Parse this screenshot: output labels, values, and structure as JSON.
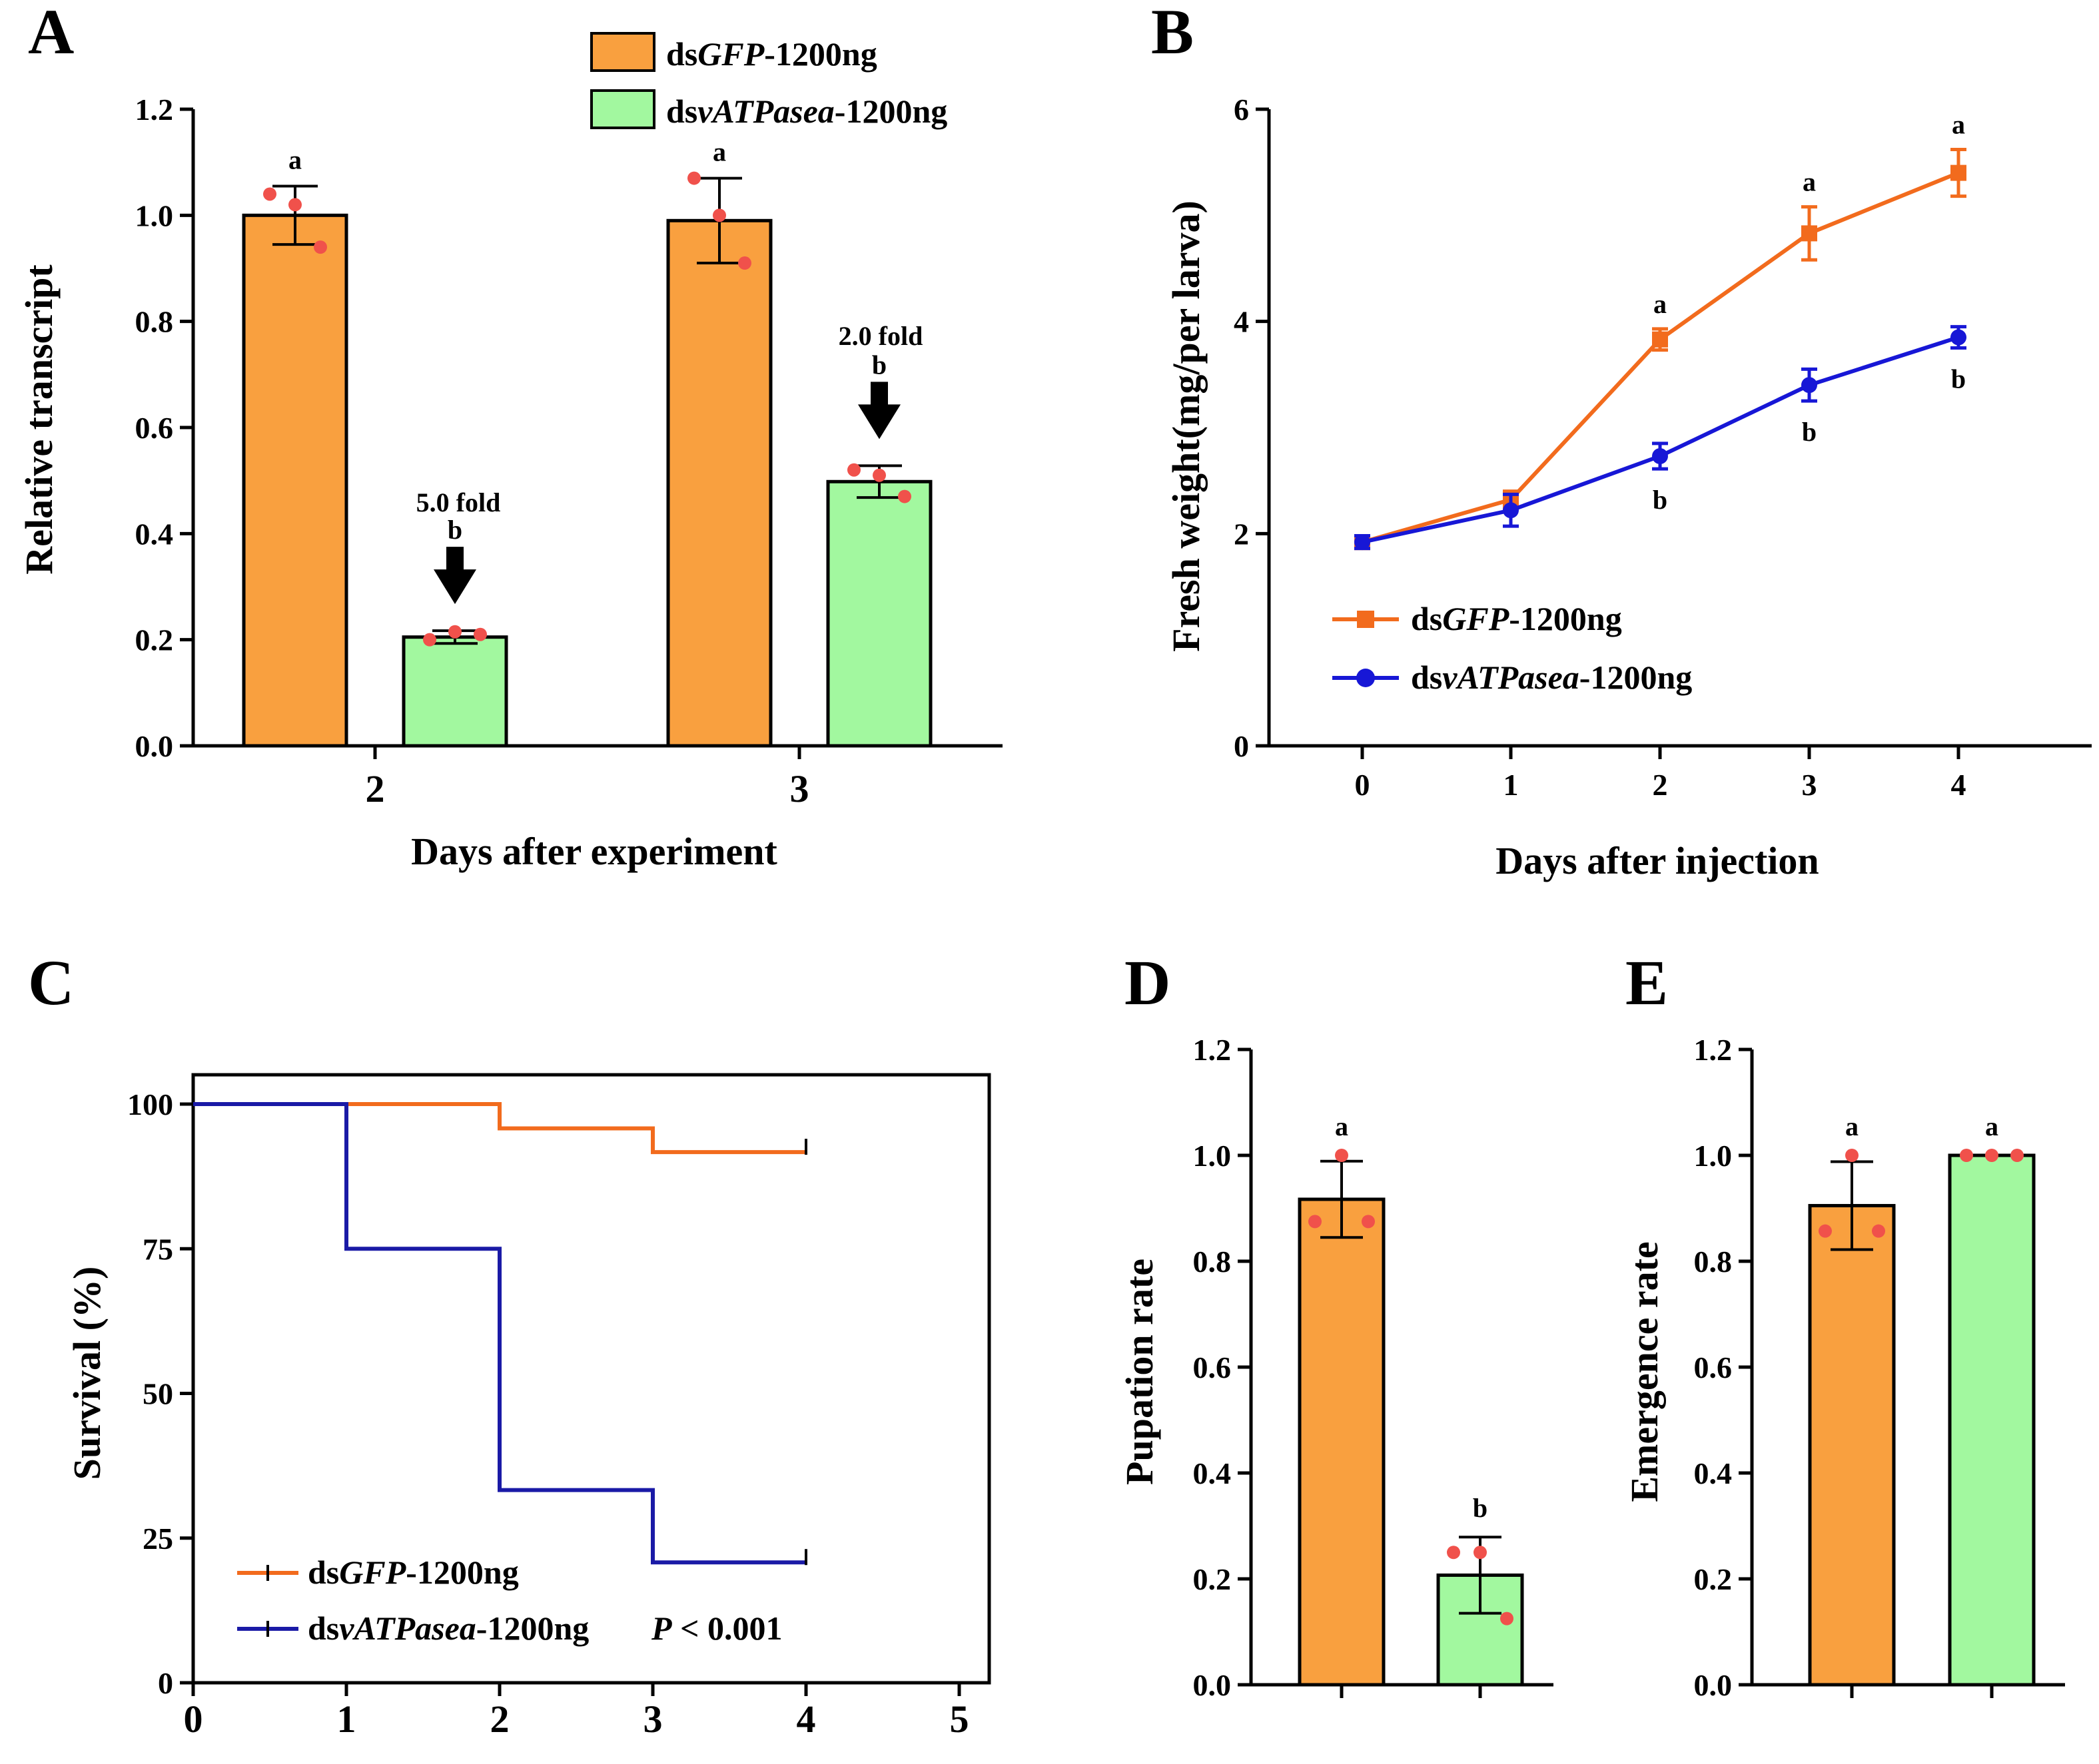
{
  "colors": {
    "gfp": "#f9a03f",
    "vatp": "#a2f89f",
    "dot": "#f0514b",
    "line_gfp": "#f26b1d",
    "line_vatp": "#1717d6",
    "km_gfp": "#f26b1d",
    "km_vatp": "#1a1aa6"
  },
  "panels": {
    "A": "A",
    "B": "B",
    "C": "C",
    "D": "D",
    "E": "E"
  },
  "legend": {
    "gfp_prefix": "ds",
    "gfp_gene": "GFP",
    "gfp_suffix": "-1200ng",
    "vatp_prefix": "ds",
    "vatp_gene": "vATPasea",
    "vatp_suffix": "-1200ng",
    "p_label": "P",
    "p_value": " < 0.001"
  },
  "chart_data": [
    {
      "id": "A",
      "type": "bar",
      "title": "",
      "xlabel": "Days after experiment",
      "ylabel": "Relative transcript",
      "categories": [
        "2",
        "3"
      ],
      "ylim": [
        0,
        1.2
      ],
      "yticks": [
        "0.0",
        "0.2",
        "0.4",
        "0.6",
        "0.8",
        "1.0",
        "1.2"
      ],
      "series": [
        {
          "name": "dsGFP-1200ng",
          "values": [
            1.0,
            0.99
          ],
          "errors": [
            0.055,
            0.08
          ],
          "letters": [
            "a",
            "a"
          ],
          "points": [
            [
              1.04,
              1.02,
              0.94
            ],
            [
              1.07,
              1.0,
              0.91
            ]
          ]
        },
        {
          "name": "dsvATPasea-1200ng",
          "values": [
            0.205,
            0.498
          ],
          "errors": [
            0.012,
            0.03
          ],
          "letters": [
            "b",
            "b"
          ],
          "points": [
            [
              0.2,
              0.215,
              0.21
            ],
            [
              0.52,
              0.51,
              0.47
            ]
          ]
        }
      ],
      "annotations": [
        "5.0 fold",
        "2.0 fold"
      ]
    },
    {
      "id": "B",
      "type": "line",
      "title": "",
      "xlabel": "Days after injection",
      "ylabel": "Fresh weight(mg/per larva)",
      "x": [
        0,
        1,
        2,
        3,
        4
      ],
      "xticks": [
        "0",
        "1",
        "2",
        "3",
        "4"
      ],
      "ylim": [
        0,
        6
      ],
      "yticks": [
        "0",
        "2",
        "4",
        "6"
      ],
      "series": [
        {
          "name": "dsGFP-1200ng",
          "values": [
            1.92,
            2.32,
            3.83,
            4.83,
            5.4
          ],
          "errors": [
            0.06,
            0.08,
            0.1,
            0.25,
            0.22
          ],
          "letters": [
            "",
            "",
            "a",
            "a",
            "a"
          ]
        },
        {
          "name": "dsvATPasea-1200ng",
          "values": [
            1.92,
            2.22,
            2.73,
            3.4,
            3.85
          ],
          "errors": [
            0.06,
            0.15,
            0.12,
            0.15,
            0.1
          ],
          "letters": [
            "",
            "",
            "b",
            "b",
            "b"
          ]
        }
      ]
    },
    {
      "id": "C",
      "type": "line",
      "subtype": "survival-step",
      "title": "",
      "xlabel": "",
      "ylabel": "Survival (%)",
      "xlim": [
        0,
        5
      ],
      "xticks": [
        "0",
        "1",
        "2",
        "3",
        "4",
        "5"
      ],
      "ylim": [
        0,
        100
      ],
      "yticks": [
        "0",
        "25",
        "50",
        "75",
        "100"
      ],
      "series": [
        {
          "name": "dsGFP-1200ng",
          "steps": [
            [
              0,
              100
            ],
            [
              2,
              95.8
            ],
            [
              3,
              91.7
            ],
            [
              4,
              91.7
            ]
          ]
        },
        {
          "name": "dsvATPasea-1200ng",
          "steps": [
            [
              0,
              100
            ],
            [
              1,
              75
            ],
            [
              2,
              33.3
            ],
            [
              3,
              20.8
            ],
            [
              4,
              20.8
            ]
          ]
        }
      ]
    },
    {
      "id": "D",
      "type": "bar",
      "title": "",
      "xlabel": "",
      "ylabel": "Pupation rate",
      "categories": [
        "dsGFP-1200ng",
        "dsvATPasea-1200ng"
      ],
      "ylim": [
        0,
        1.2
      ],
      "yticks": [
        "0.0",
        "0.2",
        "0.4",
        "0.6",
        "0.8",
        "1.0",
        "1.2"
      ],
      "values": [
        0.917,
        0.207
      ],
      "errors": [
        0.072,
        0.072
      ],
      "letters": [
        "a",
        "b"
      ],
      "points": [
        [
          1.0,
          0.875,
          0.875
        ],
        [
          0.25,
          0.25,
          0.125
        ]
      ]
    },
    {
      "id": "E",
      "type": "bar",
      "title": "",
      "xlabel": "",
      "ylabel": "Emergence rate",
      "categories": [
        "dsGFP-1200ng",
        "dsvATPasea-1200ng"
      ],
      "ylim": [
        0,
        1.2
      ],
      "yticks": [
        "0.0",
        "0.2",
        "0.4",
        "0.6",
        "0.8",
        "1.0",
        "1.2"
      ],
      "values": [
        0.905,
        1.0
      ],
      "errors": [
        0.083,
        0.0
      ],
      "letters": [
        "a",
        "a"
      ],
      "points": [
        [
          1.0,
          0.857,
          0.857
        ],
        [
          1.0,
          1.0,
          1.0
        ]
      ]
    }
  ]
}
